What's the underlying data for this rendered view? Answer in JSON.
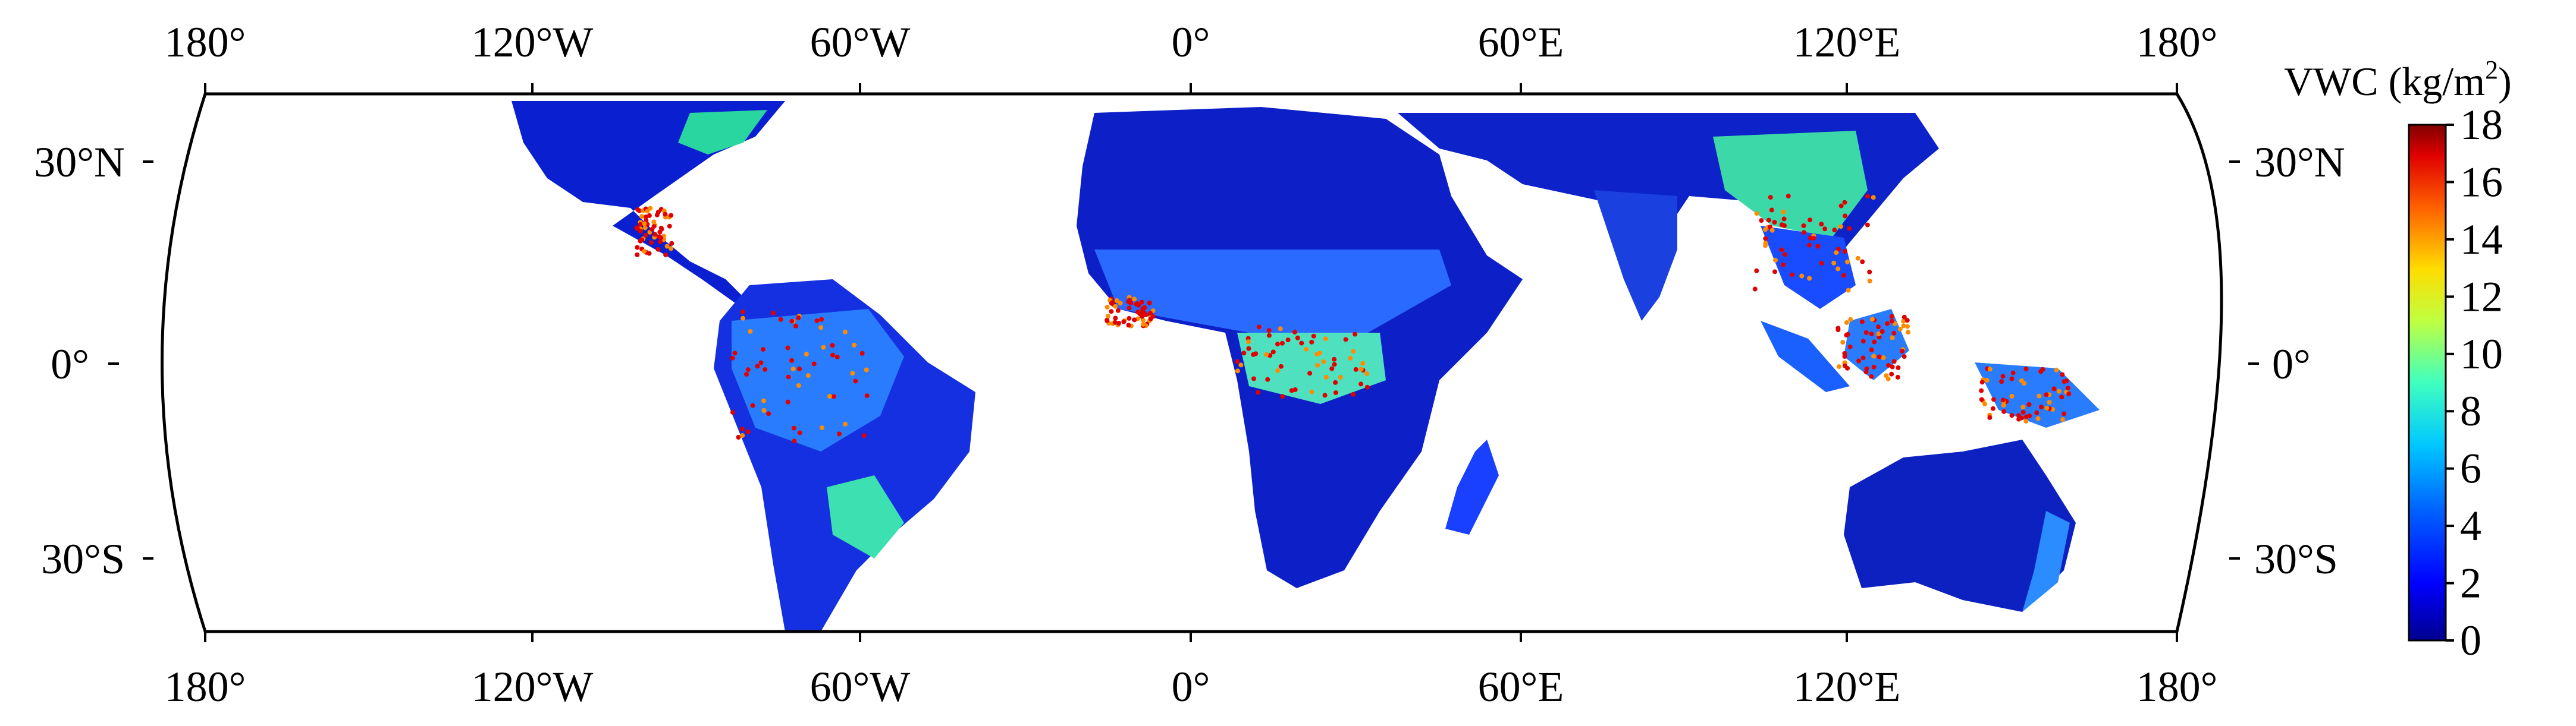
{
  "map": {
    "lon_labels": [
      "180°",
      "120°W",
      "60°W",
      "0°",
      "60°E",
      "120°E",
      "180°"
    ],
    "lat_labels_left": [
      "30°N",
      "0°",
      "30°S"
    ],
    "lat_labels_right": [
      "30°N",
      "0°",
      "30°S"
    ],
    "extent": {
      "lon": [
        -180,
        180
      ],
      "lat": [
        -38,
        38
      ]
    },
    "projection": "Robinson"
  },
  "colorbar": {
    "title_main": "VWC (kg/m",
    "title_sup": "2",
    "title_end": ")",
    "ticks": [
      "0",
      "2",
      "4",
      "6",
      "8",
      "10",
      "12",
      "14",
      "16",
      "18"
    ],
    "range": [
      0,
      18
    ],
    "colors": [
      "#00008f",
      "#0000ff",
      "#0080ff",
      "#00ffff",
      "#80ff80",
      "#ffff00",
      "#ff8000",
      "#ff0000",
      "#800000"
    ]
  }
}
